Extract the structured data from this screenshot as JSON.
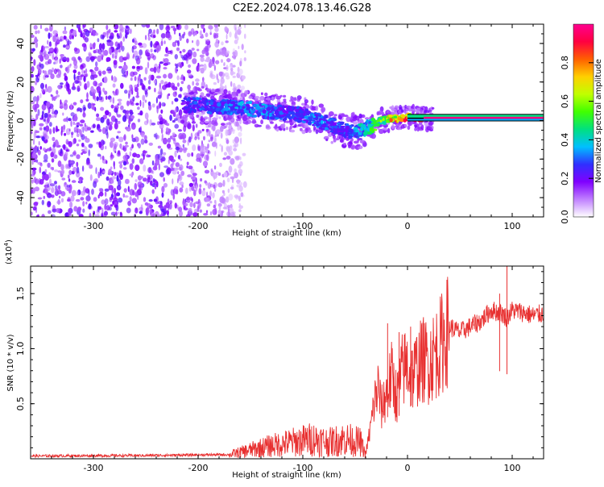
{
  "figure": {
    "title": "C2E2.2024.078.13.46.G28"
  },
  "chart_data": [
    {
      "type": "heatmap",
      "title": "",
      "xlabel": "Height of straight line (km)",
      "ylabel": "Frequency (Hz)",
      "xlim": [
        -360,
        130
      ],
      "ylim": [
        -50,
        50
      ],
      "xticks": [
        -300,
        -200,
        -100,
        0,
        100
      ],
      "yticks": [
        -40,
        -20,
        0,
        20,
        40
      ],
      "grid": false,
      "colorbar": {
        "label": "Normalized spectral amplitude",
        "range": [
          0,
          1
        ],
        "ticks": [
          0.0,
          0.2,
          0.4,
          0.6,
          0.8
        ],
        "colors": [
          "#ffffff",
          "#c080ff",
          "#8000ff",
          "#3030ff",
          "#00c0ff",
          "#00e080",
          "#40ff00",
          "#c0ff00",
          "#ffd000",
          "#ff6000",
          "#ff0040",
          "#ff0090"
        ]
      },
      "noise_region": {
        "x_range": [
          -360,
          -155
        ],
        "y_range": [
          -50,
          50
        ]
      },
      "ridge": {
        "x": [
          -215,
          -200,
          -180,
          -160,
          -140,
          -120,
          -100,
          -85,
          -70,
          -55,
          -45,
          -35,
          -25,
          -15,
          -5,
          0,
          10,
          30,
          60,
          90,
          130
        ],
        "y": [
          8,
          8,
          7,
          7,
          5,
          4,
          3,
          0,
          -3,
          -6,
          -5,
          -3,
          0,
          1,
          1,
          2,
          1,
          1,
          1,
          1,
          1
        ],
        "amplitude": [
          0.25,
          0.3,
          0.3,
          0.35,
          0.35,
          0.3,
          0.3,
          0.35,
          0.3,
          0.3,
          0.4,
          0.5,
          0.6,
          0.8,
          0.85,
          0.9,
          0.95,
          0.95,
          0.95,
          0.95,
          0.95
        ]
      },
      "band": {
        "x_range": [
          0,
          130
        ],
        "y_range": [
          0,
          3
        ]
      }
    },
    {
      "type": "line",
      "title": "",
      "xlabel": "Height of straight line (km)",
      "ylabel": "SNR (10 * v/v)",
      "yscale_label": "(x10",
      "yscale_exp": "4",
      "ylabel_suffix": ")",
      "xlim": [
        -360,
        130
      ],
      "ylim": [
        0,
        17500
      ],
      "xticks": [
        -300,
        -200,
        -100,
        0,
        100
      ],
      "yticks": [
        5000,
        10000,
        15000
      ],
      "ytick_labels": [
        "0.5",
        "1.0",
        "1.5"
      ],
      "grid": false,
      "series": [
        {
          "color": "#e83030",
          "x": [
            -360,
            -300,
            -250,
            -200,
            -170,
            -150,
            -130,
            -110,
            -90,
            -75,
            -60,
            -45,
            -40,
            -35,
            -32,
            -28,
            -25,
            -20,
            -15,
            -10,
            -5,
            0,
            5,
            10,
            15,
            20,
            30,
            40,
            50,
            60,
            70,
            80,
            90,
            95,
            100,
            110,
            120,
            130
          ],
          "values": [
            250,
            280,
            300,
            350,
            380,
            800,
            1200,
            1500,
            1800,
            1500,
            1800,
            1500,
            400,
            3000,
            5000,
            6500,
            4500,
            6000,
            7500,
            5500,
            8000,
            8500,
            7500,
            8500,
            9000,
            8800,
            10000,
            12000,
            11500,
            12000,
            12500,
            13500,
            13200,
            12800,
            13500,
            13300,
            13000,
            13200
          ],
          "peaks": {
            "x": [
              95,
              -19,
              3,
              -8,
              88
            ],
            "y": [
              17500,
              12300,
              12000,
              11500,
              15000
            ]
          }
        }
      ]
    }
  ]
}
